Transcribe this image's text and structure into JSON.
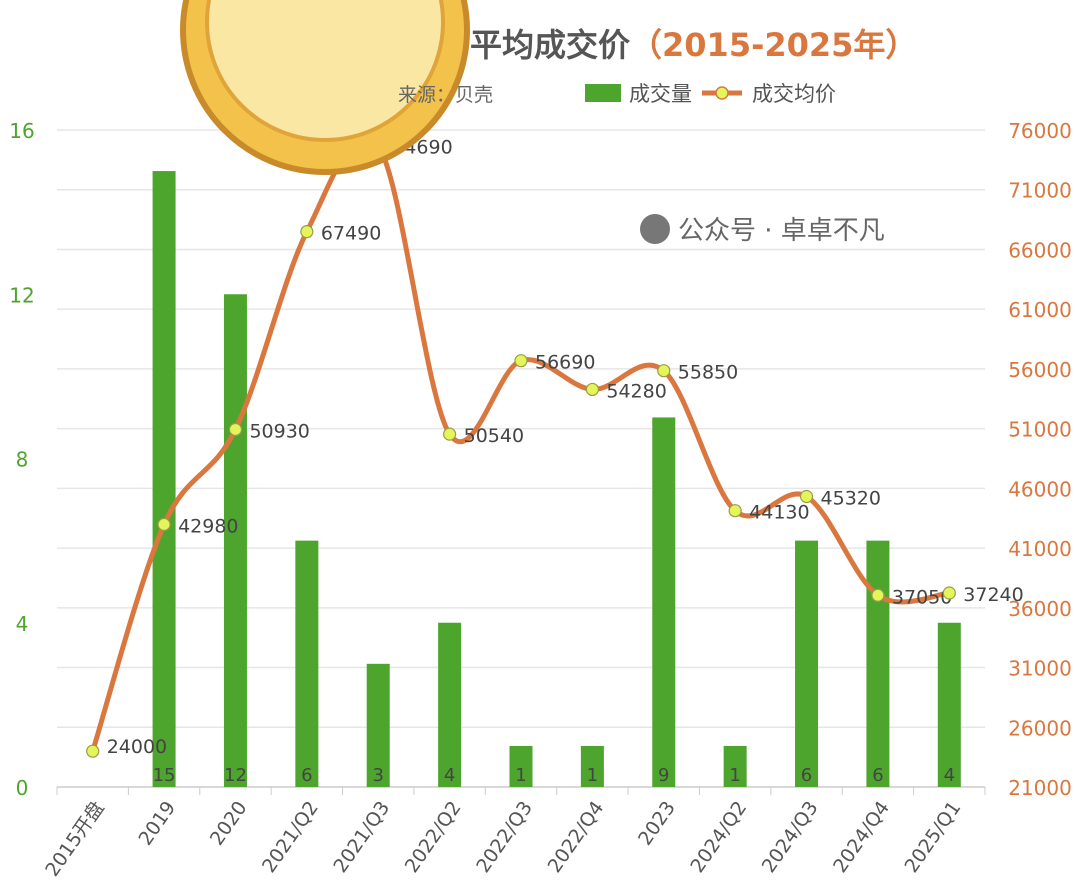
{
  "chart_data": {
    "type": "bar+line",
    "title": "平均成交价",
    "title_range": "（2015-2025年）",
    "subtitle": "来源：贝壳",
    "categories": [
      "2015开盘",
      "2019",
      "2020",
      "2021/Q2",
      "2021/Q3",
      "2022/Q2",
      "2022/Q3",
      "2022/Q4",
      "2023",
      "2024/Q2",
      "2024/Q3",
      "2024/Q4",
      "2025/Q1"
    ],
    "series": [
      {
        "name": "成交量",
        "type": "bar",
        "axis": "left",
        "color": "#4ea52e",
        "values": [
          0,
          15,
          12,
          6,
          3,
          4,
          1,
          1,
          9,
          1,
          6,
          6,
          4
        ],
        "labels": [
          "",
          "15",
          "12",
          "6",
          "3",
          "4",
          "1",
          "1",
          "9",
          "1",
          "6",
          "6",
          "4"
        ]
      },
      {
        "name": "成交均价",
        "type": "line",
        "axis": "right",
        "color": "#d9773f",
        "marker_color": "#e4f55a",
        "values": [
          24000,
          42980,
          50930,
          67490,
          74690,
          50540,
          56690,
          54280,
          55850,
          44130,
          45320,
          37050,
          37240
        ]
      }
    ],
    "left_axis": {
      "ticks": [
        0,
        4,
        8,
        12,
        16
      ],
      "range": [
        0,
        16
      ],
      "color": "#4ea52e"
    },
    "right_axis": {
      "ticks": [
        21000,
        26000,
        31000,
        36000,
        41000,
        46000,
        51000,
        56000,
        61000,
        66000,
        71000,
        76000
      ],
      "range": [
        21000,
        76000
      ],
      "color": "#d9773f"
    },
    "grid": true,
    "legend": "top-right"
  },
  "watermark": "公众号 · 卓卓不凡"
}
